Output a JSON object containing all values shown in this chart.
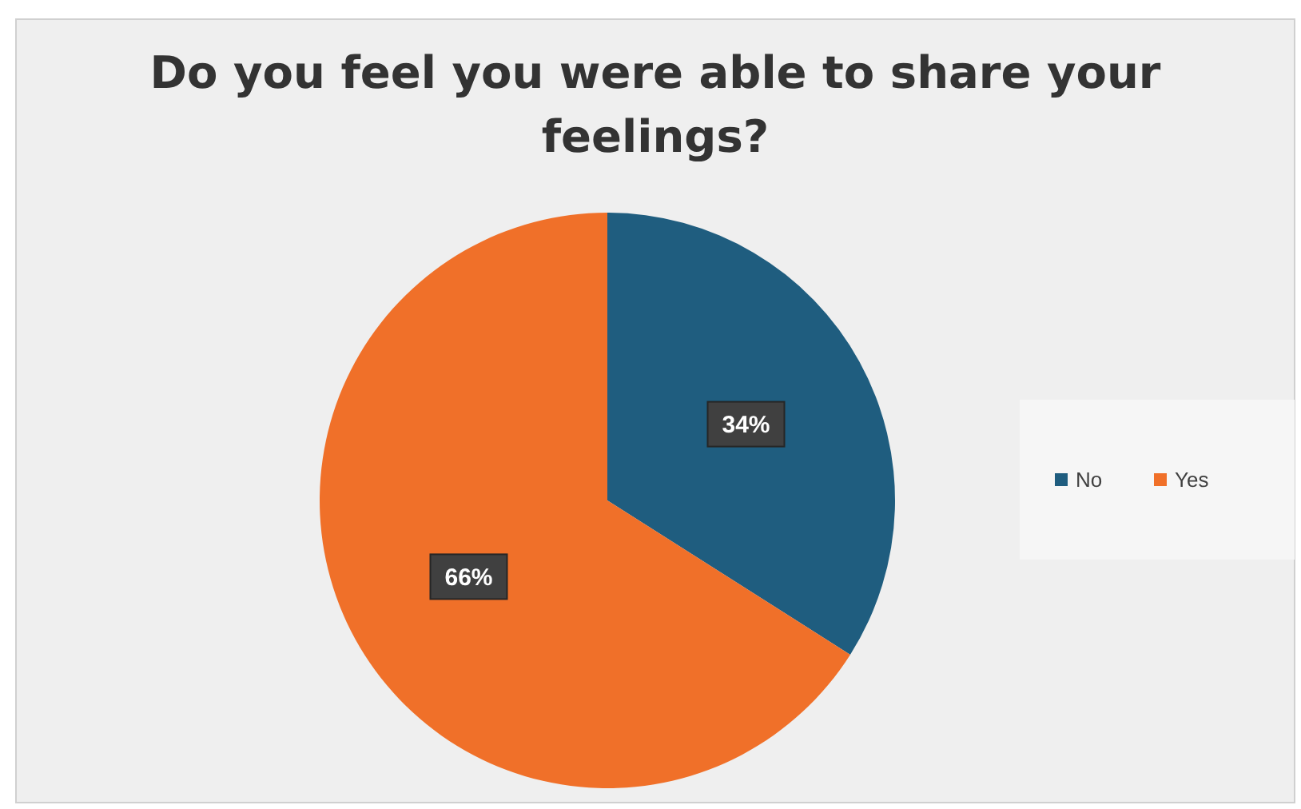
{
  "chart_data": {
    "type": "pie",
    "title": "Do you feel you were able to share your feelings?",
    "categories": [
      "No",
      "Yes"
    ],
    "values": [
      34,
      66
    ],
    "colors": [
      "#1f5d7f",
      "#f07029"
    ],
    "value_labels": [
      "34%",
      "66%"
    ],
    "legend": "right"
  }
}
